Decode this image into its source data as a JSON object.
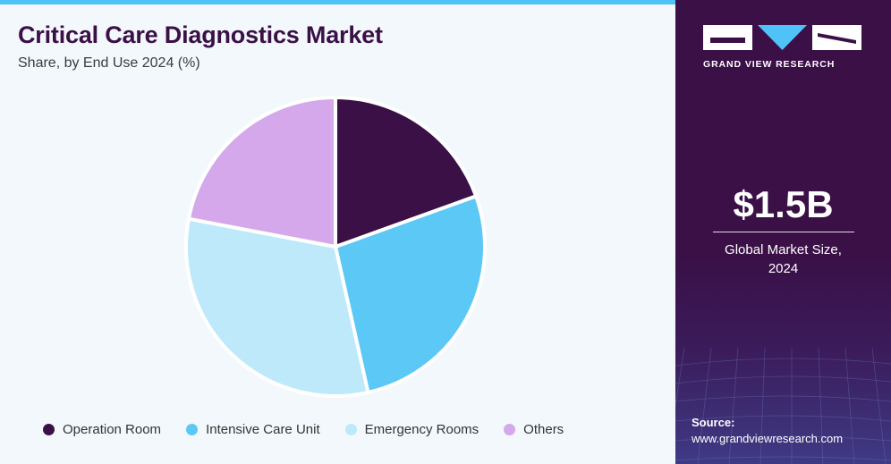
{
  "header": {
    "title": "Critical Care Diagnostics Market",
    "subtitle": "Share, by End Use 2024 (%)"
  },
  "chart_data": {
    "type": "pie",
    "categories": [
      "Operation Room",
      "Intensive Care Unit",
      "Emergency Rooms",
      "Others"
    ],
    "values": [
      19.5,
      27.0,
      31.5,
      22.0
    ],
    "colors": [
      "#3a1047",
      "#5bc8f5",
      "#bde9fa",
      "#d4a8ea"
    ],
    "legend_position": "bottom"
  },
  "legend": {
    "items": [
      {
        "label": "Operation Room",
        "color": "#3a1047"
      },
      {
        "label": "Intensive Care Unit",
        "color": "#5bc8f5"
      },
      {
        "label": "Emergency Rooms",
        "color": "#bde9fa"
      },
      {
        "label": "Others",
        "color": "#d4a8ea"
      }
    ]
  },
  "sidebar": {
    "brand": "GRAND VIEW RESEARCH",
    "market_size": "$1.5B",
    "market_size_label_line1": "Global Market Size,",
    "market_size_label_line2": "2024",
    "source_title": "Source:",
    "source_url": "www.grandviewresearch.com"
  },
  "colors": {
    "brand_dark": "#3a1047",
    "accent": "#4fc3f7",
    "background": "#f3f8fc"
  }
}
